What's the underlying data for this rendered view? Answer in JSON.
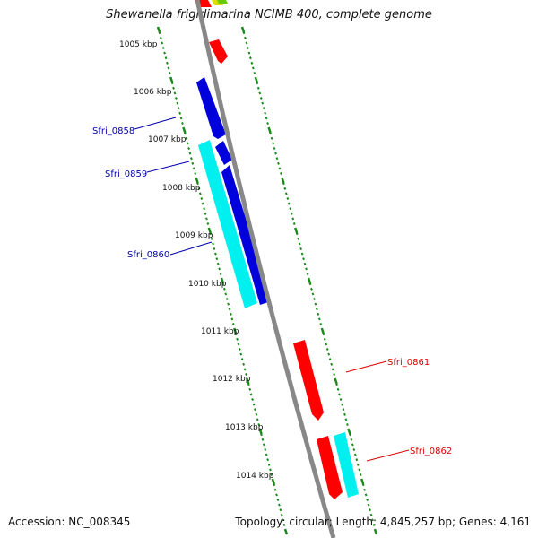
{
  "title": "Shewanella frigidimarina NCIMB 400, complete genome",
  "footer": {
    "accession": "Accession: NC_008345",
    "summary": "Topology: circular; Length: 4,845,257 bp; Genes: 4,161"
  },
  "colors": {
    "backbone": "#888888",
    "tick": "#1a8a1a",
    "forward_gene": "#0000dd",
    "reverse_gene": "#ff0000",
    "cyan_gene": "#00f0f0",
    "top_yellow": "#dddd00",
    "top_green": "#66cc00",
    "label_blue": "#0000aa",
    "label_red": "#dd0000"
  },
  "scale_labels": [
    "1005 kbp",
    "1006 kbp",
    "1007 kbp",
    "1008 kbp",
    "1009 kbp",
    "1010 kbp",
    "1011 kbp",
    "1012 kbp",
    "1013 kbp",
    "1014 kbp"
  ],
  "gene_labels": [
    {
      "text": "Sfri_0858",
      "strand": "left"
    },
    {
      "text": "Sfri_0859",
      "strand": "left"
    },
    {
      "text": "Sfri_0860",
      "strand": "left"
    },
    {
      "text": "Sfri_0861",
      "strand": "right"
    },
    {
      "text": "Sfri_0862",
      "strand": "right"
    }
  ]
}
